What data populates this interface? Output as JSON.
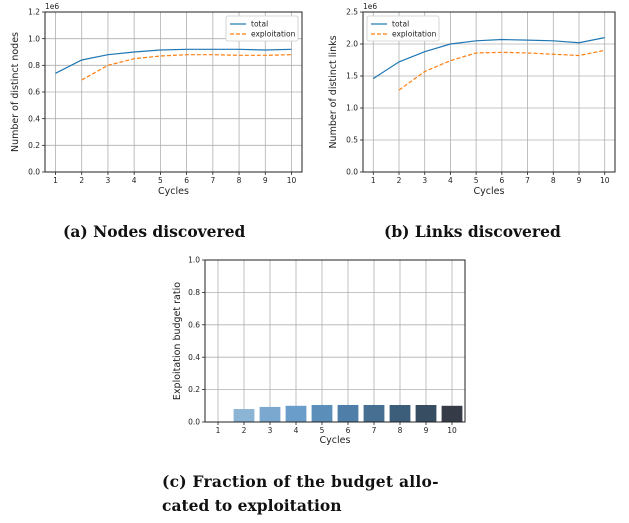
{
  "captions": {
    "a": "(a) Nodes discovered",
    "b": "(b) Links discovered",
    "c_line1": "(c) Fraction of the budget allo-",
    "c_line2": "cated to exploitation"
  },
  "chart_data": [
    {
      "id": "a",
      "type": "line",
      "xlabel": "Cycles",
      "ylabel": "Number of distinct nodes",
      "exponent_label": "1e6",
      "x": [
        1,
        2,
        3,
        4,
        5,
        6,
        7,
        8,
        9,
        10
      ],
      "xlim": [
        0.6,
        10.4
      ],
      "ylim": [
        0.0,
        1.2
      ],
      "xticks": [
        1,
        2,
        3,
        4,
        5,
        6,
        7,
        8,
        9,
        10
      ],
      "yticks": [
        0.0,
        0.2,
        0.4,
        0.6,
        0.8,
        1.0,
        1.2
      ],
      "ytick_labels": [
        "0.0",
        "0.2",
        "0.4",
        "0.6",
        "0.8",
        "1.0",
        "1.2"
      ],
      "grid": true,
      "legend_position": "top-right",
      "series": [
        {
          "name": "total",
          "color": "#1f77b4",
          "dashed": false,
          "x": [
            1,
            2,
            3,
            4,
            5,
            6,
            7,
            8,
            9,
            10
          ],
          "values": [
            0.74,
            0.84,
            0.88,
            0.9,
            0.915,
            0.92,
            0.92,
            0.92,
            0.915,
            0.92
          ]
        },
        {
          "name": "exploitation",
          "color": "#ff7f0e",
          "dashed": true,
          "x": [
            2,
            3,
            4,
            5,
            6,
            7,
            8,
            9,
            10
          ],
          "values": [
            0.69,
            0.8,
            0.85,
            0.87,
            0.88,
            0.88,
            0.875,
            0.875,
            0.88
          ]
        }
      ]
    },
    {
      "id": "b",
      "type": "line",
      "xlabel": "Cycles",
      "ylabel": "Number of distinct links",
      "exponent_label": "1e6",
      "x": [
        1,
        2,
        3,
        4,
        5,
        6,
        7,
        8,
        9,
        10
      ],
      "xlim": [
        0.6,
        10.4
      ],
      "ylim": [
        0.0,
        2.5
      ],
      "xticks": [
        1,
        2,
        3,
        4,
        5,
        6,
        7,
        8,
        9,
        10
      ],
      "yticks": [
        0.0,
        0.5,
        1.0,
        1.5,
        2.0,
        2.5
      ],
      "ytick_labels": [
        "0.0",
        "0.5",
        "1.0",
        "1.5",
        "2.0",
        "2.5"
      ],
      "grid": true,
      "legend_position": "top-left",
      "series": [
        {
          "name": "total",
          "color": "#1f77b4",
          "dashed": false,
          "x": [
            1,
            2,
            3,
            4,
            5,
            6,
            7,
            8,
            9,
            10
          ],
          "values": [
            1.46,
            1.72,
            1.88,
            2.0,
            2.05,
            2.07,
            2.06,
            2.05,
            2.02,
            2.1
          ]
        },
        {
          "name": "exploitation",
          "color": "#ff7f0e",
          "dashed": true,
          "x": [
            2,
            3,
            4,
            5,
            6,
            7,
            8,
            9,
            10
          ],
          "values": [
            1.28,
            1.57,
            1.74,
            1.86,
            1.87,
            1.86,
            1.84,
            1.82,
            1.9
          ]
        }
      ]
    },
    {
      "id": "c",
      "type": "bar",
      "xlabel": "Cycles",
      "ylabel": "Exploitation budget ratio",
      "categories": [
        "1",
        "2",
        "3",
        "4",
        "5",
        "6",
        "7",
        "8",
        "9",
        "10"
      ],
      "values": [
        0.0,
        0.08,
        0.093,
        0.1,
        0.105,
        0.105,
        0.105,
        0.105,
        0.105,
        0.1
      ],
      "colors": [
        "#a6c8e3",
        "#8cb4d5",
        "#7aa8cf",
        "#6a9dc9",
        "#5b8fba",
        "#4f7fa8",
        "#466f92",
        "#3d5e7a",
        "#374e62",
        "#353c47"
      ],
      "ylim": [
        0.0,
        1.0
      ],
      "yticks": [
        0.0,
        0.2,
        0.4,
        0.6,
        0.8,
        1.0
      ],
      "ytick_labels": [
        "0.0",
        "0.2",
        "0.4",
        "0.6",
        "0.8",
        "1.0"
      ],
      "grid": true
    }
  ]
}
